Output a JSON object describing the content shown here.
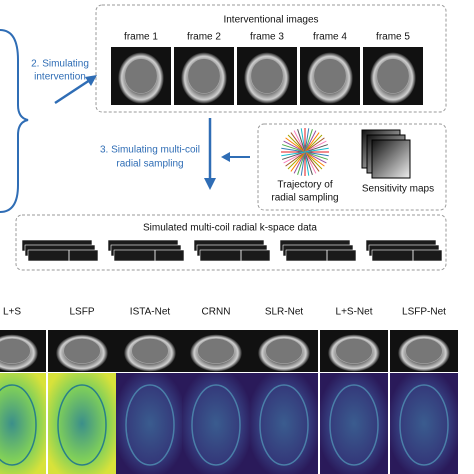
{
  "pipeline": {
    "step2_label": [
      "2. Simulating",
      "intervention"
    ],
    "interventional": {
      "title": "Interventional images",
      "frames": [
        "frame 1",
        "frame 2",
        "frame 3",
        "frame 4",
        "frame 5"
      ]
    },
    "step3_label": [
      "3. Simulating multi-coil",
      "radial sampling"
    ],
    "trajectory_label": [
      "Trajectory of",
      "radial sampling"
    ],
    "sensitivity_label": "Sensitivity maps",
    "kspace": {
      "title": "Simulated multi-coil radial k-space data"
    }
  },
  "comparison": {
    "methods": [
      "L+S",
      "LSFP",
      "ISTA-Net",
      "CRNN",
      "SLR-Net",
      "L+S-Net",
      "LSFP-Net"
    ]
  }
}
